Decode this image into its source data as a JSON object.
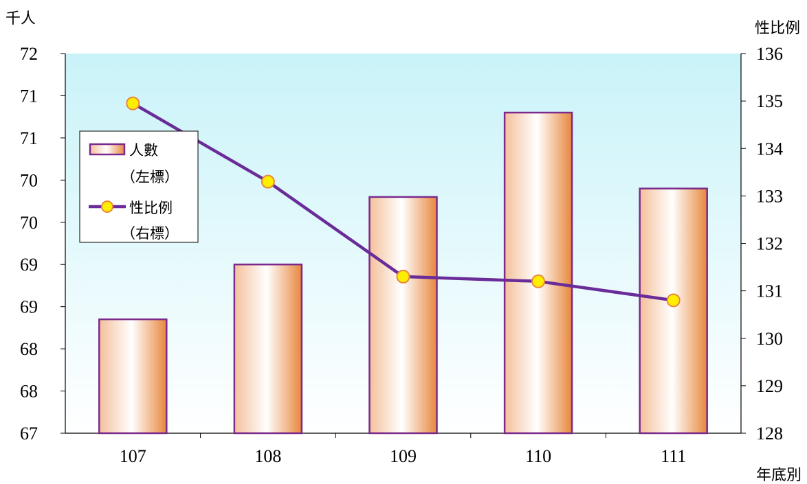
{
  "chart_data": {
    "type": "bar+line",
    "x_title": "年底別",
    "y_left_unit": "千人",
    "y_right_unit": "性比例",
    "categories": [
      "107",
      "108",
      "109",
      "110",
      "111"
    ],
    "y_left_ticks": [
      "67",
      "68",
      "68",
      "69",
      "69",
      "70",
      "70",
      "71",
      "71",
      "72"
    ],
    "y_left_range": [
      67,
      71.5
    ],
    "y_right_ticks": [
      "128",
      "129",
      "130",
      "131",
      "132",
      "133",
      "134",
      "135",
      "136"
    ],
    "y_right_range": [
      128,
      136
    ],
    "series": [
      {
        "name": "人數",
        "legend_sub": "（左標）",
        "type": "bar",
        "axis": "left",
        "values": [
          68.35,
          69.0,
          69.8,
          70.8,
          69.9
        ],
        "color": "#7b2a8c",
        "fill_light": "#ffffff",
        "fill_dark": "#e8873d"
      },
      {
        "name": "性比例",
        "legend_sub": "（右標）",
        "type": "line",
        "axis": "right",
        "values": [
          134.95,
          133.3,
          131.3,
          131.2,
          130.8
        ],
        "color": "#6a2c98",
        "marker_fill": "#ffee00",
        "marker_edge": "#e8873d"
      }
    ],
    "plot_bg_top": "#c9f3f9",
    "plot_bg_bottom": "#ffffff",
    "legend_position": "upper-left"
  }
}
